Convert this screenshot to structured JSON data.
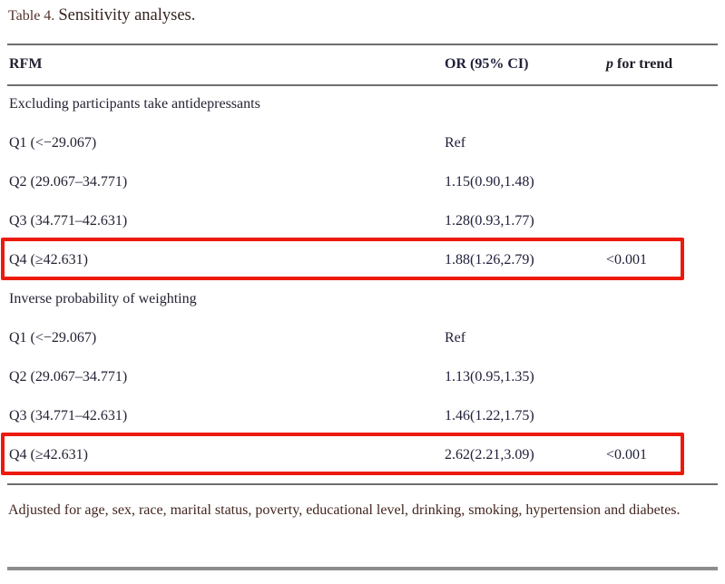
{
  "title": {
    "label": "Table 4.",
    "caption": "Sensitivity analyses."
  },
  "table": {
    "header": {
      "col_rfm": "RFM",
      "col_or": "OR (95% CI)",
      "col_p_italic": "p",
      "col_p_rest": " for trend"
    },
    "sections": [
      {
        "header": "Excluding participants take antidepressants",
        "rows": [
          {
            "rfm": "Q1 (<−29.067)",
            "or": "Ref",
            "p": "",
            "highlight": false
          },
          {
            "rfm": "Q2 (29.067–34.771)",
            "or": "1.15(0.90,1.48)",
            "p": "",
            "highlight": false
          },
          {
            "rfm": "Q3 (34.771–42.631)",
            "or": "1.28(0.93,1.77)",
            "p": "",
            "highlight": false
          },
          {
            "rfm": "Q4 (≥42.631)",
            "or": "1.88(1.26,2.79)",
            "p": "<0.001",
            "highlight": true
          }
        ]
      },
      {
        "header": "Inverse probability of weighting",
        "rows": [
          {
            "rfm": "Q1 (<−29.067)",
            "or": "Ref",
            "p": "",
            "highlight": false
          },
          {
            "rfm": "Q2 (29.067–34.771)",
            "or": "1.13(0.95,1.35)",
            "p": "",
            "highlight": false
          },
          {
            "rfm": "Q3 (34.771–42.631)",
            "or": "1.46(1.22,1.75)",
            "p": "",
            "highlight": false
          },
          {
            "rfm": "Q4 (≥42.631)",
            "or": "2.62(2.21,3.09)",
            "p": "<0.001",
            "highlight": true
          }
        ]
      }
    ],
    "footnote": "Adjusted for age, sex, race, marital status, poverty, educational level, drinking, smoking, hypertension and diabetes."
  },
  "colors": {
    "highlight_border": "#ec1a0d",
    "rule_gray": "#6e6e6e",
    "thick_rule_gray": "#8d8d8d",
    "body_text": "#232334",
    "caption_text": "#53322a",
    "footnote_text": "#43261f",
    "background": "#ffffff"
  }
}
